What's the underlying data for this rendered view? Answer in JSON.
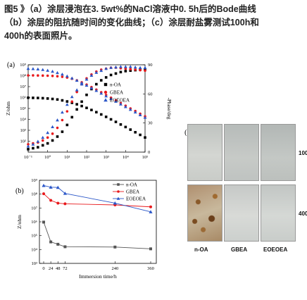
{
  "caption": {
    "line1": "图5 》（a）涂层浸泡在3. 5wt%的NaCl溶液中0. 5h后的Bode曲线",
    "line2": "（b）涂层的阻抗随时间的变化曲线；（c）涂层耐盐雾测试100h和",
    "line3": "400h的表面照片。"
  },
  "panel_labels": {
    "a": "(a)",
    "b": "(b)",
    "c": "(c)"
  },
  "colors": {
    "noa": "#000000",
    "gbea": "#e8191c",
    "eoeoea": "#2a56c8"
  },
  "chart_data": [
    {
      "type": "scatter",
      "panel": "(a)",
      "xlabel": "",
      "ylabel": "Z/ohm",
      "y2label": "-Phase/deg",
      "x_scale": "log",
      "y_scale": "log",
      "xlim": [
        0.1,
        100000
      ],
      "ylim": [
        10,
        1000000000
      ],
      "y2lim": [
        0,
        90
      ],
      "x_ticks": [
        "10⁻¹",
        "10⁰",
        "10¹",
        "10²",
        "10³",
        "10⁴",
        "10⁵"
      ],
      "y_ticks": [
        "10²",
        "10³",
        "10⁴",
        "10⁵",
        "10⁶",
        "10⁷",
        "10⁸",
        "10⁹"
      ],
      "y2_ticks": [
        "0",
        "30",
        "60",
        "90"
      ],
      "legend": [
        "n-OA",
        "GBEA",
        "EOEOEA"
      ],
      "legend_position": "top-right",
      "series": [
        {
          "name": "n-OA",
          "kind": "impedance",
          "marker": "square",
          "color": "#000000",
          "logx": [
            -1,
            -0.75,
            -0.5,
            -0.25,
            0,
            0.25,
            0.5,
            0.75,
            1,
            1.25,
            1.5,
            1.75,
            2,
            2.25,
            2.5,
            2.75,
            3,
            3.25,
            3.5,
            3.75,
            4,
            4.25,
            4.5,
            4.75,
            5
          ],
          "logy": [
            5.98,
            5.97,
            5.96,
            5.94,
            5.91,
            5.87,
            5.82,
            5.74,
            5.64,
            5.52,
            5.38,
            5.22,
            5.05,
            4.86,
            4.66,
            4.45,
            4.23,
            4,
            3.77,
            3.53,
            3.3,
            3.06,
            2.82,
            2.58,
            2.34
          ]
        },
        {
          "name": "n-OA",
          "kind": "phase",
          "marker": "square",
          "color": "#000000",
          "logx": [
            -1,
            -0.75,
            -0.5,
            -0.25,
            0,
            0.25,
            0.5,
            0.75,
            1,
            1.25,
            1.5,
            1.75,
            2,
            2.25,
            2.5,
            2.75,
            3,
            3.25,
            3.5,
            3.75,
            4,
            4.25,
            4.5,
            4.75,
            5
          ],
          "phase": [
            3,
            4,
            5,
            7,
            9,
            12,
            16,
            21,
            28,
            36,
            44,
            52,
            59,
            65,
            70,
            74,
            77,
            79.5,
            81,
            82.5,
            83.5,
            84,
            84.5,
            85,
            85
          ]
        },
        {
          "name": "GBEA",
          "kind": "impedance",
          "marker": "circle",
          "color": "#e8191c",
          "logx": [
            -1,
            -0.75,
            -0.5,
            -0.25,
            0,
            0.25,
            0.5,
            0.75,
            1,
            1.25,
            1.5,
            1.75,
            2,
            2.25,
            2.5,
            2.75,
            3,
            3.25,
            3.5,
            3.75,
            4,
            4.25,
            4.5,
            4.75,
            5
          ],
          "logy": [
            8.03,
            8.03,
            8.02,
            8.01,
            8,
            7.98,
            7.95,
            7.9,
            7.83,
            7.72,
            7.57,
            7.39,
            7.18,
            6.96,
            6.72,
            6.48,
            6.23,
            5.98,
            5.74,
            5.49,
            5.25,
            5,
            4.76,
            4.51,
            4.27
          ]
        },
        {
          "name": "GBEA",
          "kind": "phase",
          "marker": "circle",
          "color": "#e8191c",
          "logx": [
            -1,
            -0.75,
            -0.5,
            -0.25,
            0,
            0.25,
            0.5,
            0.75,
            1,
            1.25,
            1.5,
            1.75,
            2,
            2.25,
            2.5,
            2.75,
            3,
            3.25,
            3.5,
            3.75,
            4,
            4.25,
            4.5,
            4.75,
            5
          ],
          "phase": [
            8,
            9,
            10,
            12,
            15,
            19,
            25,
            33,
            42,
            52,
            62,
            70,
            76,
            80,
            83,
            85,
            86,
            87,
            87,
            86.5,
            86,
            85.5,
            85,
            84.5,
            84
          ]
        },
        {
          "name": "EOEOEA",
          "kind": "impedance",
          "marker": "triangle",
          "color": "#2a56c8",
          "logx": [
            -1,
            -0.75,
            -0.5,
            -0.25,
            0,
            0.25,
            0.5,
            0.75,
            1,
            1.25,
            1.5,
            1.75,
            2,
            2.25,
            2.5,
            2.75,
            3,
            3.25,
            3.5,
            3.75,
            4,
            4.25,
            4.5,
            4.75,
            5
          ],
          "logy": [
            8.65,
            8.63,
            8.6,
            8.55,
            8.48,
            8.39,
            8.27,
            8.13,
            7.96,
            7.77,
            7.56,
            7.34,
            7.11,
            6.87,
            6.63,
            6.38,
            6.13,
            5.88,
            5.64,
            5.39,
            5.15,
            4.9,
            4.66,
            4.41,
            4.17
          ]
        },
        {
          "name": "EOEOEA",
          "kind": "phase",
          "marker": "triangle",
          "color": "#2a56c8",
          "logx": [
            -1,
            -0.75,
            -0.5,
            -0.25,
            0,
            0.25,
            0.5,
            0.75,
            1,
            1.25,
            1.5,
            1.75,
            2,
            2.25,
            2.5,
            2.75,
            3,
            3.25,
            3.5,
            3.75,
            4,
            4.25,
            4.5,
            4.75,
            5
          ],
          "phase": [
            6,
            8,
            11,
            15,
            20,
            26,
            33,
            41,
            49,
            57,
            64,
            70,
            75,
            79,
            82,
            84,
            86,
            87,
            87.5,
            88,
            88,
            88,
            87.5,
            87,
            87
          ]
        }
      ]
    },
    {
      "type": "line",
      "panel": "(b)",
      "xlabel": "Immersion time/h",
      "ylabel": "Z/ohm",
      "y_scale": "log",
      "xlim": [
        0,
        360
      ],
      "ylim": [
        1000,
        1000000000
      ],
      "x_ticks": [
        0,
        24,
        48,
        72,
        240,
        360
      ],
      "y_ticks": [
        "10³",
        "10⁴",
        "10⁵",
        "10⁶",
        "10⁷",
        "10⁸",
        "10⁹"
      ],
      "legend": [
        "n-OA",
        "GBEA",
        "EOEOEA"
      ],
      "legend_position": "top-right",
      "x": [
        0,
        24,
        48,
        72,
        240,
        360
      ],
      "series": [
        {
          "name": "n-OA",
          "marker": "square",
          "color": "#555555",
          "logy": [
            5.98,
            4.55,
            4.38,
            4.2,
            4.18,
            4.05
          ]
        },
        {
          "name": "GBEA",
          "marker": "circle",
          "color": "#e8191c",
          "logy": [
            8.03,
            7.55,
            7.35,
            7.3,
            7.22,
            7.08
          ]
        },
        {
          "name": "EOEOEA",
          "marker": "triangle",
          "color": "#2a56c8",
          "logy": [
            8.62,
            8.5,
            8.48,
            8.05,
            7.35,
            6.72
          ]
        }
      ]
    }
  ],
  "photos": {
    "row_labels": [
      "100h",
      "400h"
    ],
    "column_labels": [
      "n-OA",
      "GBEA",
      "EOEOEA"
    ]
  }
}
